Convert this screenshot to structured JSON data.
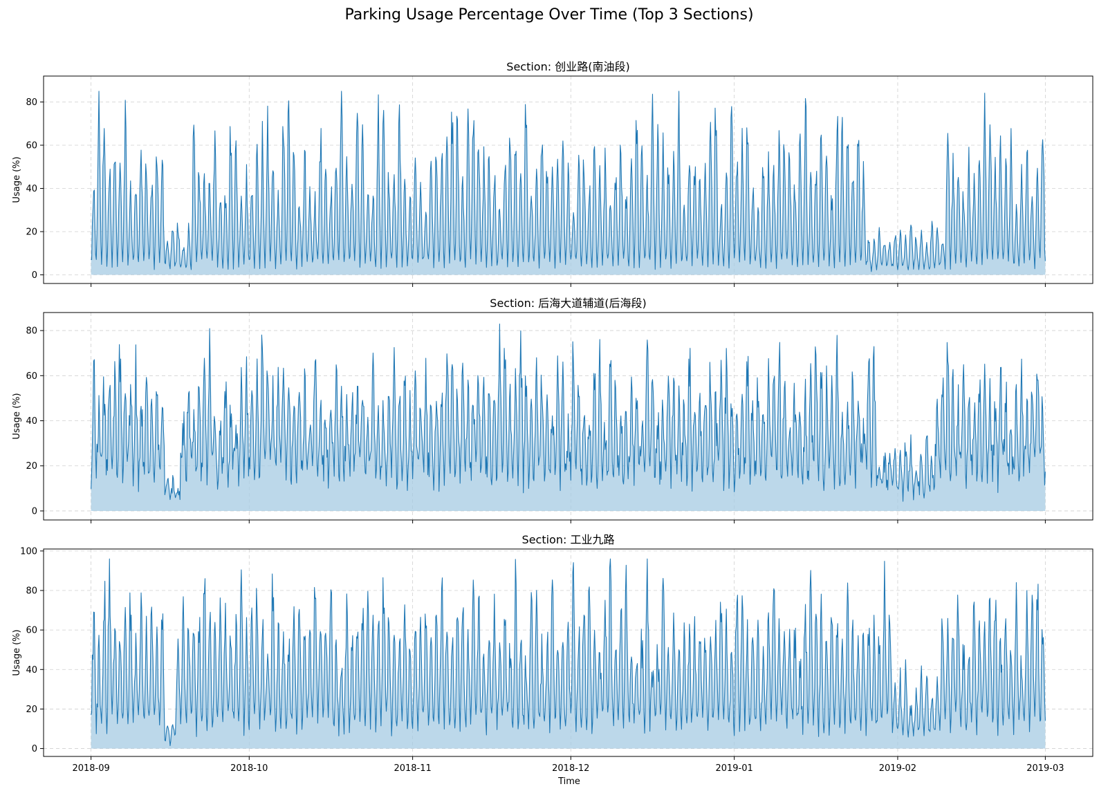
{
  "figure": {
    "title": "Parking Usage Percentage Over Time (Top 3 Sections)",
    "xlabel": "Time"
  },
  "colors": {
    "line": "#1f77b4",
    "fill": "#a6cbe3",
    "background": "#ffffff"
  },
  "chart_data": [
    {
      "type": "area",
      "title": "Section: 创业路(南油段)",
      "ylabel": "Usage (%)",
      "ylim": [
        -4,
        92
      ],
      "yticks": [
        0,
        20,
        40,
        60,
        80
      ],
      "xlim": [
        "2018-08-23",
        "2019-03-10"
      ],
      "xticks": [
        "2018-09",
        "2018-10",
        "2018-11",
        "2018-12",
        "2019-01",
        "2019-02",
        "2019-03"
      ],
      "x_start": "2018-09-01",
      "x_end": "2019-03-01",
      "series": [
        {
          "name": "创业路(南油段)",
          "period_days": 1.0,
          "day_peak_range": [
            5,
            85
          ],
          "low_base": 6,
          "segments": [
            {
              "start": "2018-09-01",
              "end": "2018-09-15",
              "level": 1.0
            },
            {
              "start": "2018-09-15",
              "end": "2018-09-20",
              "level": 0.3
            },
            {
              "start": "2018-09-20",
              "end": "2019-01-26",
              "level": 1.0
            },
            {
              "start": "2019-01-26",
              "end": "2019-02-10",
              "level": 0.3
            },
            {
              "start": "2019-02-10",
              "end": "2019-03-01",
              "level": 1.02
            }
          ]
        }
      ]
    },
    {
      "type": "area",
      "title": "Section: 后海大道辅道(后海段)",
      "ylabel": "Usage (%)",
      "ylim": [
        -4,
        88
      ],
      "yticks": [
        0,
        20,
        40,
        60,
        80
      ],
      "xlim": [
        "2018-08-23",
        "2019-03-10"
      ],
      "xticks": [
        "2018-09",
        "2018-10",
        "2018-11",
        "2018-12",
        "2019-01",
        "2019-02",
        "2019-03"
      ],
      "x_start": "2018-09-01",
      "x_end": "2019-03-01",
      "series": [
        {
          "name": "后海大道辅道(后海段)",
          "period_days": 1.0,
          "day_peak_range": [
            15,
            84
          ],
          "low_base": 20,
          "segments": [
            {
              "start": "2018-09-01",
              "end": "2018-09-15",
              "level": 1.0
            },
            {
              "start": "2018-09-15",
              "end": "2018-09-18",
              "level": 0.2
            },
            {
              "start": "2018-09-18",
              "end": "2019-01-28",
              "level": 1.0
            },
            {
              "start": "2019-01-28",
              "end": "2019-02-08",
              "level": 0.45
            },
            {
              "start": "2019-02-08",
              "end": "2019-03-01",
              "level": 1.0
            }
          ]
        }
      ]
    },
    {
      "type": "area",
      "title": "Section: 工业九路",
      "ylabel": "Usage (%)",
      "ylim": [
        -4,
        101
      ],
      "yticks": [
        0,
        20,
        40,
        60,
        80,
        100
      ],
      "xlim": [
        "2018-08-23",
        "2019-03-10"
      ],
      "xticks": [
        "2018-09",
        "2018-10",
        "2018-11",
        "2018-12",
        "2019-01",
        "2019-02",
        "2019-03"
      ],
      "x_start": "2018-09-01",
      "x_end": "2019-03-01",
      "series": [
        {
          "name": "工业九路",
          "period_days": 1.0,
          "day_peak_range": [
            20,
            96
          ],
          "low_base": 15,
          "segments": [
            {
              "start": "2018-09-01",
              "end": "2018-09-15",
              "level": 1.0
            },
            {
              "start": "2018-09-15",
              "end": "2018-09-17",
              "level": 0.2
            },
            {
              "start": "2018-09-17",
              "end": "2019-01-31",
              "level": 1.0
            },
            {
              "start": "2019-01-31",
              "end": "2019-02-09",
              "level": 0.45
            },
            {
              "start": "2019-02-09",
              "end": "2019-03-01",
              "level": 1.0
            }
          ]
        }
      ]
    }
  ]
}
